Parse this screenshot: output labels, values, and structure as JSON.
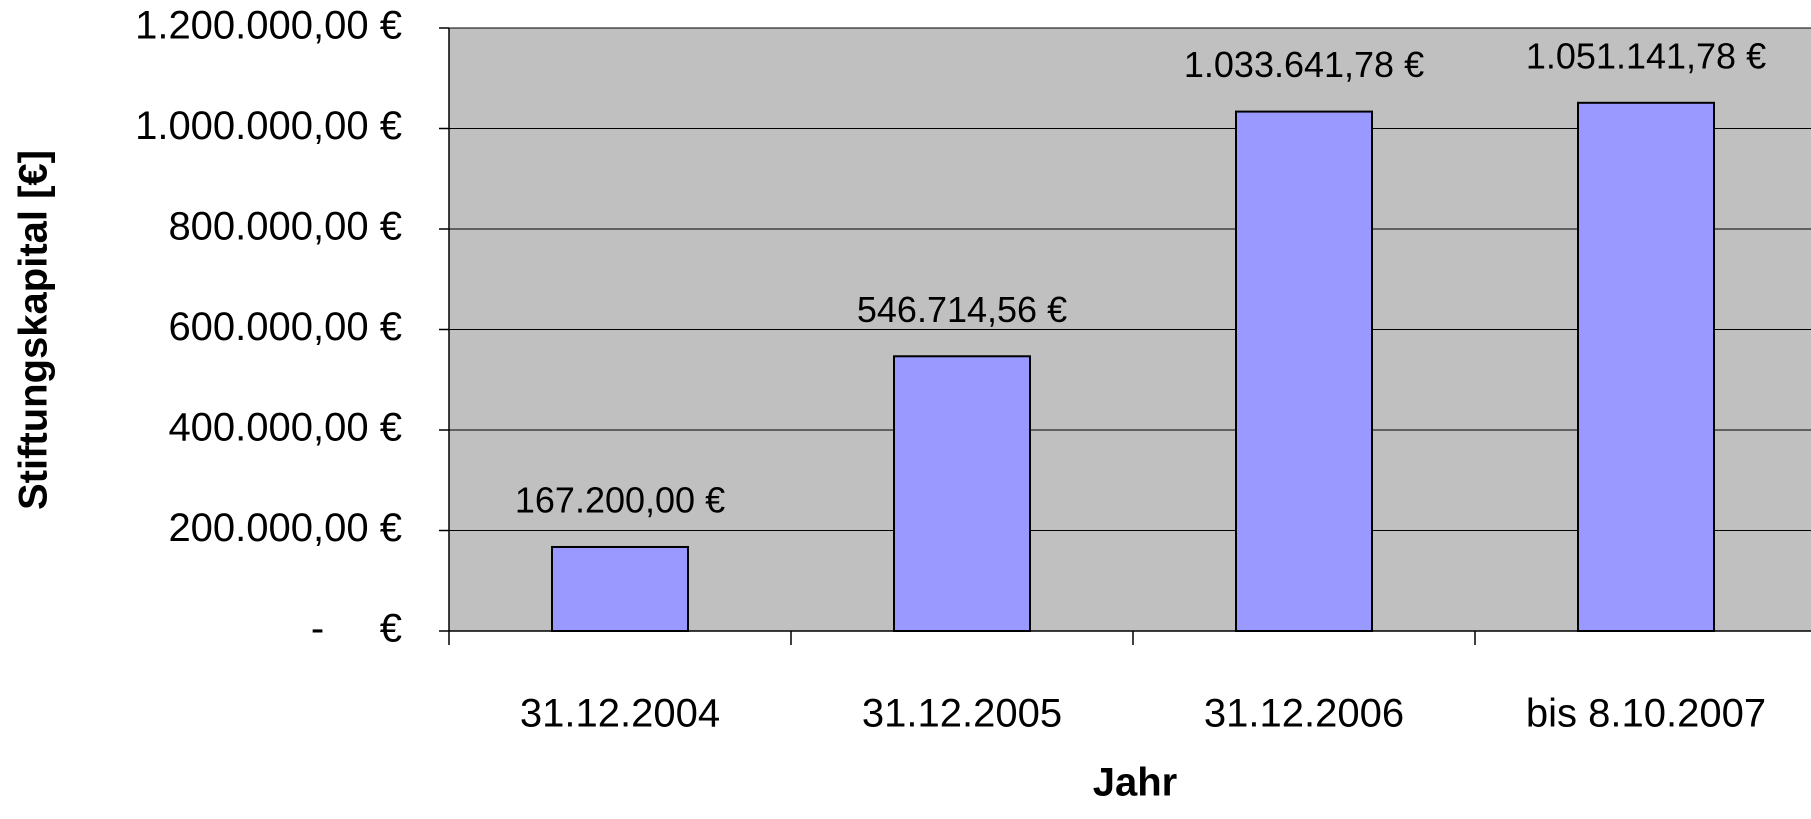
{
  "chart_data": {
    "type": "bar",
    "categories": [
      "31.12.2004",
      "31.12.2005",
      "31.12.2006",
      "bis 8.10.2007"
    ],
    "values": [
      167200,
      546714.56,
      1033641.78,
      1051141.78
    ],
    "value_labels": [
      "167.200,00 €",
      "546.714,56 €",
      "1.033.641,78 €",
      "1.051.141,78 €"
    ],
    "color": "#9999ff",
    "ylim": [
      0,
      1200000
    ],
    "yticks": [
      {
        "value": 0,
        "label": "-     €"
      },
      {
        "value": 200000,
        "label": "200.000,00 €"
      },
      {
        "value": 400000,
        "label": "400.000,00 €"
      },
      {
        "value": 600000,
        "label": "600.000,00 €"
      },
      {
        "value": 800000,
        "label": "800.000,00 €"
      },
      {
        "value": 1000000,
        "label": "1.000.000,00 €"
      },
      {
        "value": 1200000,
        "label": "1.200.000,00 €"
      }
    ],
    "grid": true,
    "x_label": "Jahr",
    "y_label": "Stiftungskapital [€]"
  }
}
